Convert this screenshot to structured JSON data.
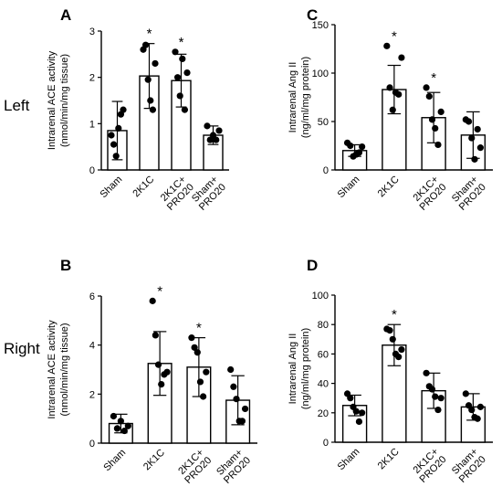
{
  "row_labels": {
    "top": "Left",
    "bottom": "Right"
  },
  "chart_data": [
    {
      "panel": "A",
      "type": "bar",
      "ylabel_lines": [
        "Intrarenal ACE activity",
        "(nmol/min/mg tissue)"
      ],
      "ylim": [
        0,
        3
      ],
      "yticks": [
        0,
        1,
        2,
        3
      ],
      "categories": [
        [
          "Sham"
        ],
        [
          "2K1C"
        ],
        [
          "2K1C+",
          "PRO20"
        ],
        [
          "Sham+",
          "PRO20"
        ]
      ],
      "values": [
        0.85,
        2.03,
        1.93,
        0.75
      ],
      "errors": [
        0.63,
        0.7,
        0.57,
        0.2
      ],
      "points": [
        [
          0.75,
          0.55,
          0.3,
          0.9,
          1.2,
          1.3
        ],
        [
          2.6,
          2.7,
          1.95,
          1.5,
          1.3,
          2.3
        ],
        [
          2.55,
          2.0,
          1.6,
          2.4,
          1.3,
          2.1
        ],
        [
          0.95,
          0.65,
          0.75,
          0.65,
          0.85
        ]
      ],
      "significance": [
        "",
        "*",
        "*",
        ""
      ],
      "grid": false
    },
    {
      "panel": "C",
      "type": "bar",
      "ylabel_lines": [
        "Intrarenal Ang II",
        "(ng/ml/mg protein)"
      ],
      "ylim": [
        0,
        150
      ],
      "yticks": [
        0,
        50,
        100,
        150
      ],
      "categories": [
        [
          "Sham"
        ],
        [
          "2K1C"
        ],
        [
          "2K1C+",
          "PRO20"
        ],
        [
          "Sham+",
          "PRO20"
        ]
      ],
      "values": [
        20,
        83,
        54,
        36
      ],
      "errors": [
        6,
        25,
        26,
        24
      ],
      "points": [
        [
          28,
          25,
          14,
          16,
          18,
          24
        ],
        [
          128,
          85,
          62,
          80,
          78,
          116
        ],
        [
          85,
          76,
          52,
          43,
          26,
          60
        ],
        [
          52,
          50,
          33,
          11,
          42,
          23
        ]
      ],
      "significance": [
        "",
        "*",
        "*",
        ""
      ],
      "grid": false
    },
    {
      "panel": "B",
      "type": "bar",
      "ylabel_lines": [
        "Intrarenal ACE activity",
        "(nmol/min/mg tissue)"
      ],
      "ylim": [
        0,
        6
      ],
      "yticks": [
        0,
        2,
        4,
        6
      ],
      "categories": [
        [
          "Sham"
        ],
        [
          "2K1C"
        ],
        [
          "2K1C+",
          "PRO20"
        ],
        [
          "Sham+",
          "PRO20"
        ]
      ],
      "values": [
        0.8,
        3.25,
        3.1,
        1.75
      ],
      "errors": [
        0.38,
        1.3,
        1.2,
        1.0
      ],
      "points": [
        [
          1.1,
          0.6,
          0.9,
          0.5,
          0.7
        ],
        [
          5.8,
          4.4,
          3.2,
          2.4,
          2.8,
          2.9
        ],
        [
          4.3,
          3.9,
          3.7,
          2.5,
          1.9,
          2.9
        ],
        [
          3.0,
          2.3,
          1.8,
          0.9,
          0.9,
          1.4
        ]
      ],
      "significance": [
        "",
        "*",
        "*",
        ""
      ],
      "grid": false
    },
    {
      "panel": "D",
      "type": "bar",
      "ylabel_lines": [
        "Intrarenal Ang II",
        "(ng/ml/mg protein)"
      ],
      "ylim": [
        0,
        100
      ],
      "yticks": [
        0,
        20,
        40,
        60,
        80,
        100
      ],
      "categories": [
        [
          "Sham"
        ],
        [
          "2K1C"
        ],
        [
          "2K1C+",
          "PRO20"
        ],
        [
          "Sham+",
          "PRO20"
        ]
      ],
      "values": [
        25,
        66,
        35,
        24
      ],
      "errors": [
        7,
        14,
        12,
        9
      ],
      "points": [
        [
          33,
          30,
          24,
          21,
          14,
          20
        ],
        [
          77,
          76,
          70,
          60,
          58,
          63
        ],
        [
          47,
          38,
          36,
          31,
          22,
          30
        ],
        [
          33,
          25,
          22,
          17,
          16,
          24
        ]
      ],
      "significance": [
        "",
        "*",
        "",
        ""
      ],
      "grid": false
    }
  ]
}
